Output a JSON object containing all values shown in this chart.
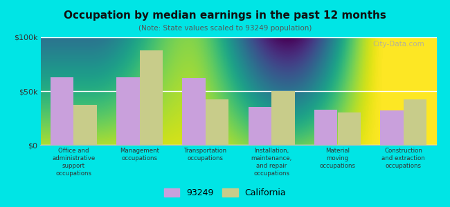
{
  "title": "Occupation by median earnings in the past 12 months",
  "subtitle": "(Note: State values scaled to 93249 population)",
  "categories": [
    "Office and\nadministrative\nsupport\noccupations",
    "Management\noccupations",
    "Transportation\noccupations",
    "Installation,\nmaintenance,\nand repair\noccupations",
    "Material\nmoving\noccupations",
    "Construction\nand extraction\noccupations"
  ],
  "values_93249": [
    63000,
    63000,
    62000,
    35000,
    33000,
    32000
  ],
  "values_california": [
    37000,
    88000,
    42000,
    50000,
    30000,
    42000
  ],
  "color_93249": "#c9a0dc",
  "color_california": "#c8cc8a",
  "background_color": "#00e5e5",
  "ylim": [
    0,
    100000
  ],
  "ytick_labels": [
    "$0",
    "$50k",
    "$100k"
  ],
  "legend_93249": "93249",
  "legend_california": "California",
  "watermark": "City-Data.com"
}
